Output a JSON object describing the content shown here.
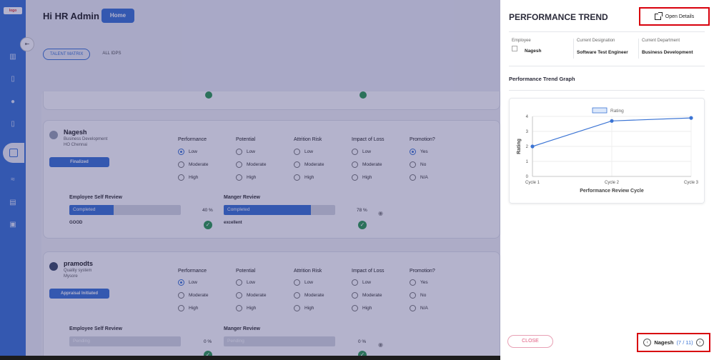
{
  "header": {
    "greeting": "Hi HR Admin",
    "home_label": "Home"
  },
  "tabs": [
    {
      "label": "TALENT MATRIX",
      "active": true
    },
    {
      "label": "ALL IDPS",
      "active": false
    }
  ],
  "columns": [
    "Performance",
    "Potential",
    "Attrition Risk",
    "Impact of Loss",
    "Promotion?"
  ],
  "options": {
    "performance": [
      "Low",
      "Moderate",
      "High"
    ],
    "potential": [
      "Low",
      "Moderate",
      "High"
    ],
    "attrition": [
      "Low",
      "Moderate",
      "High"
    ],
    "impact": [
      "Low",
      "Moderate",
      "High"
    ],
    "promotion": [
      "Yes",
      "No",
      "N/A"
    ]
  },
  "review_labels": {
    "self": "Employee Self Review",
    "manager": "Manger Review"
  },
  "employees": [
    {
      "name": "Nagesh",
      "department": "Business Development",
      "location": "HO Chennai",
      "status": "Finalized",
      "self_status": "Completed",
      "self_pct_label": "40 %",
      "self_pct": 40,
      "self_comment": "GOOD",
      "mgr_status": "Completed",
      "mgr_pct_label": "78 %",
      "mgr_pct": 78,
      "mgr_comment": "excellent"
    },
    {
      "name": "pramodts",
      "department": "Quality system",
      "location": "Mysore",
      "status": "Appraisal Initiated",
      "self_status": "Pending",
      "self_pct_label": "0 %",
      "self_pct": 0,
      "self_comment": "",
      "mgr_status": "Pending",
      "mgr_pct_label": "0 %",
      "mgr_pct": 0,
      "mgr_comment": ""
    }
  ],
  "drawer": {
    "title": "PERFORMANCE TREND",
    "open_details": "Open Details",
    "employee_label": "Employee",
    "employee_value": "Nagesh",
    "designation_label": "Current Designation",
    "designation_value": "Software Test Engineer",
    "department_label": "Current Department",
    "department_value": "Business Development",
    "graph_title": "Performance Trend Graph",
    "close_label": "CLOSE",
    "pager_name": "Nagesh",
    "pager_count": "(7 / 11)"
  },
  "colors": {
    "accent": "#3b74d4",
    "success": "#2e9b52",
    "highlight": "#d8000c"
  },
  "chart_data": {
    "type": "line",
    "categories": [
      "Cycle 1",
      "Cycle 2",
      "Cycle 3"
    ],
    "series": [
      {
        "name": "Rating",
        "values": [
          2,
          3.7,
          3.9
        ]
      }
    ],
    "xlabel": "Performance Review Cycle",
    "ylabel": "Rating",
    "ylim": [
      0,
      4
    ],
    "yticks": [
      0,
      1,
      2,
      3,
      4
    ],
    "grid": true,
    "legend": "top-center"
  }
}
